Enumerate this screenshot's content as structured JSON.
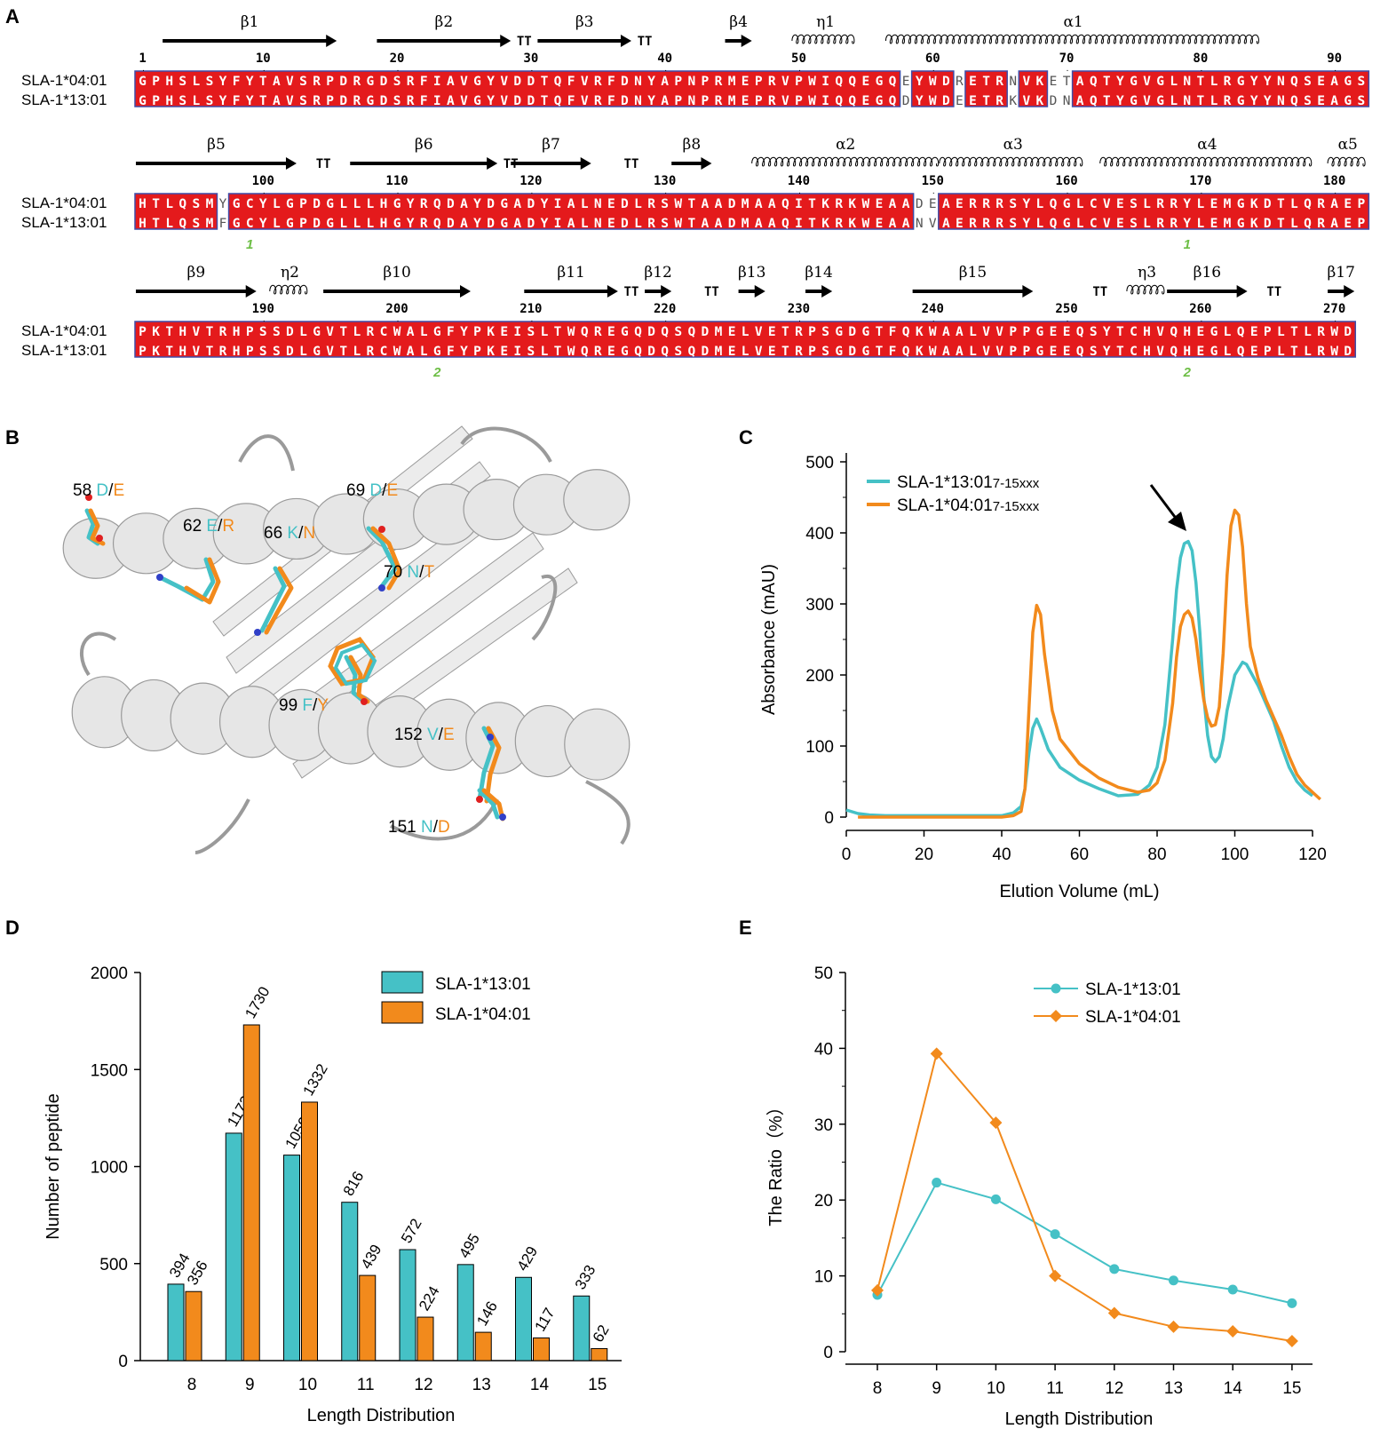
{
  "panel_letters": [
    "A",
    "B",
    "C",
    "D",
    "E"
  ],
  "colors": {
    "teal": "#45C1C6",
    "orange": "#F28A1C",
    "seq_red": "#E41A1C",
    "seq_border": "#3F4DA8",
    "green_label": "#6DBE45",
    "ribbon": "#D9D9D9"
  },
  "panel_a": {
    "allele_top": "SLA-1*04:01",
    "allele_bottom": "SLA-1*13:01",
    "rows": [
      {
        "seq_top": "GPHSLSYFYTAVSRPDRGDSRFIAVGYVDDTQFVRFDNYAPNPRMEPRVPWIQQEGQEYWDRETRNVKETAQTYGVGLNTLRGYYNQSEAGS",
        "seq_bottom": "GPHSLSYFYTAVSRPDRGDSRFIAVGYVDDTQFVRFDNYAPNPRMEPRVPWIQQEGQDYWDEETRKVKDNAQTYGVGLNTLRGYYNQSEAGS",
        "start": 1,
        "numbers": [
          "1",
          "10",
          "20",
          "30",
          "40",
          "50",
          "60",
          "70",
          "80",
          "90"
        ],
        "elements": [
          {
            "type": "arrow",
            "label": "β1",
            "from": 3,
            "to": 15
          },
          {
            "type": "arrow",
            "label": "β2",
            "from": 19,
            "to": 28
          },
          {
            "type": "turn",
            "label": "TT",
            "at": 29
          },
          {
            "type": "arrow",
            "label": "β3",
            "from": 31,
            "to": 37
          },
          {
            "type": "turn",
            "label": "TT",
            "at": 38
          },
          {
            "type": "arrow",
            "label": "β4",
            "from": 45,
            "to": 46
          },
          {
            "type": "helix",
            "label": "η1",
            "from": 50,
            "to": 54
          },
          {
            "type": "helix",
            "label": "α1",
            "from": 57,
            "to": 84
          }
        ],
        "markers": []
      },
      {
        "seq_top": "HTLQSMYGCYLGPDGLLLHGYRQDAYDGADYIALNEDLRSWTAADMAAQITKRKWEAADEAERRRSYLQGLCVESLRRYLEMGKDTLQRAEP",
        "seq_bottom": "HTLQSMFGCYLGPDGLLLHGYRQDAYDGADYIALNEDLRSWTAADMAAQITKRKWEAANVAERRRSYLQGLCVESLRRYLEMGKDTLQRAEP",
        "start": 91,
        "numbers": [
          "100",
          "110",
          "120",
          "130",
          "140",
          "150",
          "160",
          "170",
          "180"
        ],
        "elements": [
          {
            "type": "arrow",
            "label": "β5",
            "from": 91,
            "to": 102
          },
          {
            "type": "turn",
            "label": "TT",
            "at": 104
          },
          {
            "type": "arrow",
            "label": "β6",
            "from": 107,
            "to": 117
          },
          {
            "type": "turn",
            "label": "TT",
            "at": 118
          },
          {
            "type": "arrow",
            "label": "β7",
            "from": 119,
            "to": 124
          },
          {
            "type": "turn",
            "label": "TT",
            "at": 127
          },
          {
            "type": "arrow",
            "label": "β8",
            "from": 131,
            "to": 133
          },
          {
            "type": "helix",
            "label": "α2",
            "from": 137,
            "to": 150
          },
          {
            "type": "helix",
            "label": "α3",
            "from": 151,
            "to": 161
          },
          {
            "type": "helix",
            "label": "α4",
            "from": 163,
            "to": 178
          },
          {
            "type": "helix",
            "label": "α5",
            "from": 180,
            "to": 182
          }
        ],
        "markers": [
          {
            "label": "1",
            "at": 99
          },
          {
            "label": "1",
            "at": 169
          }
        ]
      },
      {
        "seq_top": "PKTHVTRHPSSDLGVTLRCWALGFYPKEISLTWQREGQDQSQDMELVETRPSGDGTFQKWAALVVPPGEEQSYTCHVQHEGLQEPLTLRWD",
        "seq_bottom": "PKTHVTRHPSSDLGVTLRCWALGFYPKEISLTWQREGQDQSQDMELVETRPSGDGTFQKWAALVVPPGEEQSYTCHVQHEGLQEPLTLRWD",
        "start": 181,
        "numbers": [
          "190",
          "200",
          "210",
          "220",
          "230",
          "240",
          "250",
          "260",
          "270"
        ],
        "elements": [
          {
            "type": "arrow",
            "label": "β9",
            "from": 181,
            "to": 189
          },
          {
            "type": "helix",
            "label": "η2",
            "from": 191,
            "to": 193
          },
          {
            "type": "arrow",
            "label": "β10",
            "from": 195,
            "to": 205
          },
          {
            "type": "arrow",
            "label": "β11",
            "from": 210,
            "to": 216
          },
          {
            "type": "turn",
            "label": "TT",
            "at": 217
          },
          {
            "type": "arrow",
            "label": "β12",
            "from": 219,
            "to": 220
          },
          {
            "type": "turn",
            "label": "TT",
            "at": 223
          },
          {
            "type": "arrow",
            "label": "β13",
            "from": 226,
            "to": 227
          },
          {
            "type": "arrow",
            "label": "β14",
            "from": 231,
            "to": 232
          },
          {
            "type": "arrow",
            "label": "β15",
            "from": 239,
            "to": 247
          },
          {
            "type": "turn",
            "label": "TT",
            "at": 252
          },
          {
            "type": "helix",
            "label": "η3",
            "from": 255,
            "to": 257
          },
          {
            "type": "arrow",
            "label": "β16",
            "from": 258,
            "to": 263
          },
          {
            "type": "turn",
            "label": "TT",
            "at": 265
          },
          {
            "type": "arrow",
            "label": "β17",
            "from": 270,
            "to": 271
          }
        ],
        "markers": [
          {
            "label": "2",
            "at": 203
          },
          {
            "label": "2",
            "at": 259
          }
        ]
      }
    ]
  },
  "panel_b": {
    "residues": [
      {
        "num": "58",
        "a": "D",
        "b": "E"
      },
      {
        "num": "62",
        "a": "E",
        "b": "R"
      },
      {
        "num": "66",
        "a": "K",
        "b": "N"
      },
      {
        "num": "69",
        "a": "D",
        "b": "E"
      },
      {
        "num": "70",
        "a": "N",
        "b": "T"
      },
      {
        "num": "99",
        "a": "F",
        "b": "Y"
      },
      {
        "num": "152",
        "a": "V",
        "b": "E"
      },
      {
        "num": "151",
        "a": "N",
        "b": "D"
      }
    ]
  },
  "chart_data": [
    {
      "panel": "C",
      "type": "line",
      "xlabel": "Elution Volume (mL)",
      "ylabel": "Absorbance (mAU)",
      "xlim": [
        0,
        120
      ],
      "ylim": [
        0,
        500
      ],
      "xticks": [
        0,
        20,
        40,
        60,
        80,
        100,
        120
      ],
      "yticks": [
        0,
        100,
        200,
        300,
        400,
        500
      ],
      "legend_position": "top-left",
      "annotation": "arrow pointing at peak near 88 mL",
      "series": [
        {
          "name": "SLA-1*13:01",
          "name_sub": "7-15xxx",
          "color": "#45C1C6",
          "x": [
            0,
            3,
            6,
            10,
            20,
            30,
            40,
            43,
            45,
            46,
            47,
            48,
            49,
            50,
            52,
            55,
            60,
            65,
            70,
            75,
            78,
            80,
            82,
            84,
            85,
            86,
            87,
            88,
            89,
            90,
            91,
            92,
            93,
            94,
            95,
            96,
            97,
            98,
            100,
            102,
            103,
            104,
            106,
            108,
            110,
            112,
            114,
            116,
            118,
            120
          ],
          "y": [
            10,
            5,
            3,
            2,
            2,
            2,
            2,
            6,
            15,
            40,
            90,
            125,
            138,
            125,
            95,
            70,
            52,
            40,
            30,
            32,
            45,
            70,
            130,
            250,
            320,
            365,
            385,
            388,
            375,
            330,
            260,
            170,
            115,
            85,
            78,
            85,
            110,
            150,
            200,
            218,
            215,
            205,
            185,
            160,
            135,
            100,
            70,
            50,
            38,
            30
          ]
        },
        {
          "name": "SLA-1*04:01",
          "name_sub": "7-15xxx",
          "color": "#F28A1C",
          "x": [
            3,
            6,
            10,
            20,
            30,
            40,
            43,
            45,
            46,
            47,
            48,
            49,
            50,
            51,
            53,
            55,
            60,
            65,
            70,
            75,
            78,
            80,
            82,
            84,
            85,
            86,
            87,
            88,
            89,
            90,
            91,
            92,
            93,
            94,
            95,
            96,
            97,
            98,
            99,
            100,
            101,
            102,
            103,
            104,
            106,
            108,
            110,
            112,
            114,
            116,
            118,
            120,
            122
          ],
          "y": [
            0,
            0,
            0,
            0,
            0,
            0,
            2,
            8,
            40,
            150,
            260,
            298,
            285,
            230,
            150,
            110,
            75,
            55,
            42,
            35,
            38,
            48,
            80,
            160,
            225,
            268,
            285,
            290,
            280,
            250,
            205,
            165,
            140,
            128,
            130,
            155,
            230,
            340,
            410,
            432,
            425,
            380,
            300,
            240,
            195,
            165,
            140,
            115,
            85,
            60,
            45,
            35,
            25
          ]
        }
      ]
    },
    {
      "panel": "D",
      "type": "bar",
      "xlabel": "Length Distribution",
      "ylabel": "Number of peptide",
      "ylim": [
        0,
        2000
      ],
      "yticks": [
        0,
        500,
        1000,
        1500,
        2000
      ],
      "legend_position": "top-right",
      "categories": [
        "8",
        "9",
        "10",
        "11",
        "12",
        "13",
        "14",
        "15"
      ],
      "series": [
        {
          "name": "SLA-1*13:01",
          "color": "#45C1C6",
          "values": [
            394,
            1172,
            1059,
            816,
            572,
            495,
            429,
            333
          ]
        },
        {
          "name": "SLA-1*04:01",
          "color": "#F28A1C",
          "values": [
            356,
            1730,
            1332,
            439,
            224,
            146,
            117,
            62
          ]
        }
      ],
      "value_labels": [
        [
          "394",
          "1172",
          "1059",
          "816",
          "572",
          "495",
          "429",
          "333"
        ],
        [
          "356",
          "1730",
          "1332",
          "439",
          "224",
          "146",
          "117",
          "62"
        ]
      ]
    },
    {
      "panel": "E",
      "type": "line",
      "xlabel": "Length Distribution",
      "ylabel": "The Ratio（%）",
      "ylim": [
        0,
        50
      ],
      "yticks": [
        0,
        10,
        20,
        30,
        40,
        50
      ],
      "legend_position": "top-right",
      "categories": [
        "8",
        "9",
        "10",
        "11",
        "12",
        "13",
        "14",
        "15"
      ],
      "series": [
        {
          "name": "SLA-1*13:01",
          "color": "#45C1C6",
          "marker": "circle",
          "values": [
            7.5,
            22.3,
            20.1,
            15.5,
            10.9,
            9.4,
            8.2,
            6.4
          ]
        },
        {
          "name": "SLA-1*04:01",
          "color": "#F28A1C",
          "marker": "diamond",
          "values": [
            8.1,
            39.3,
            30.2,
            10.0,
            5.1,
            3.3,
            2.7,
            1.4
          ]
        }
      ]
    }
  ]
}
